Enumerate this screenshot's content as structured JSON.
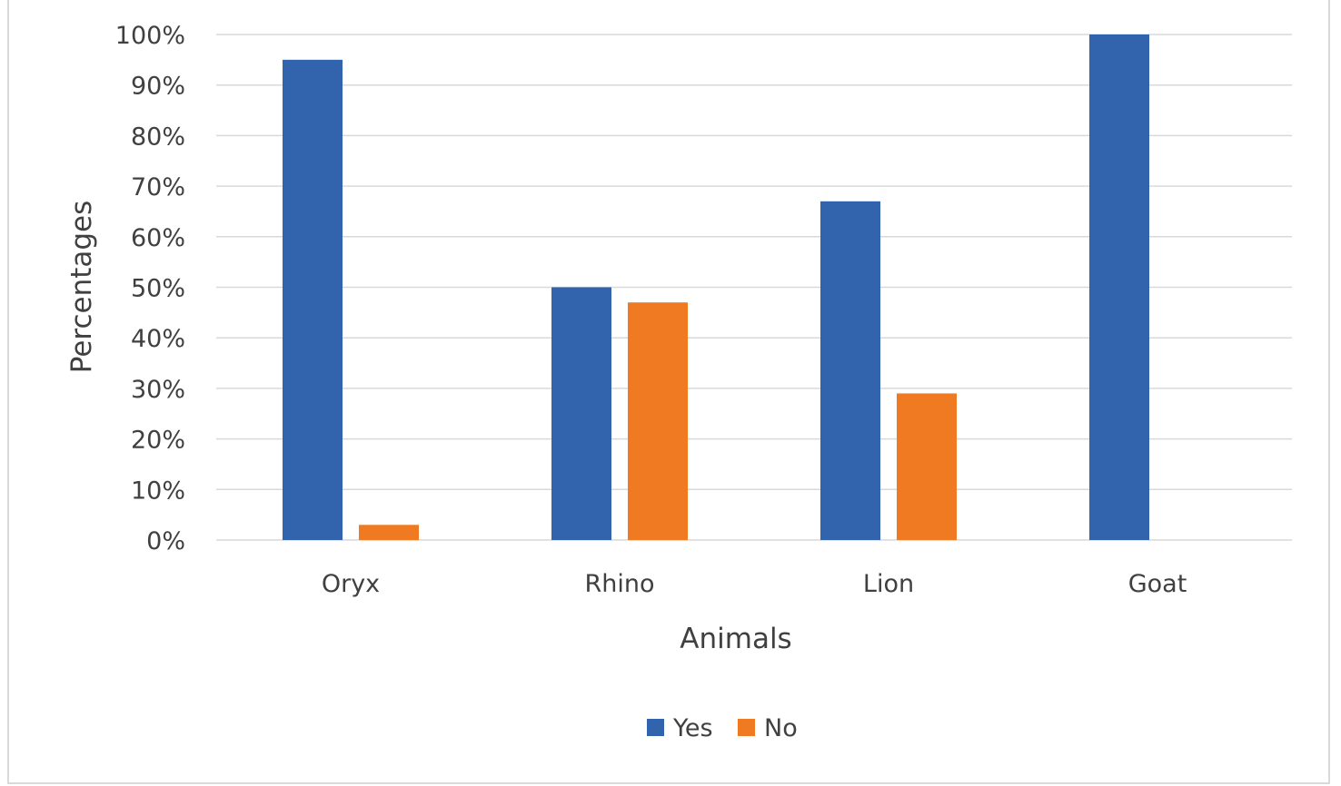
{
  "chart_data": {
    "type": "bar",
    "title": "",
    "xlabel": "Animals",
    "ylabel": "Percentages",
    "categories": [
      "Oryx",
      "Rhino",
      "Lion",
      "Goat"
    ],
    "series": [
      {
        "name": "Yes",
        "color": "#3264ae",
        "values": [
          95,
          50,
          67,
          100
        ]
      },
      {
        "name": "No",
        "color": "#ef7a21",
        "values": [
          3,
          47,
          29,
          0
        ]
      }
    ],
    "ylim": [
      0,
      100
    ],
    "yticks": [
      "0%",
      "10%",
      "20%",
      "30%",
      "40%",
      "50%",
      "60%",
      "70%",
      "80%",
      "90%",
      "100%"
    ],
    "grid": true,
    "legend_position": "bottom"
  }
}
